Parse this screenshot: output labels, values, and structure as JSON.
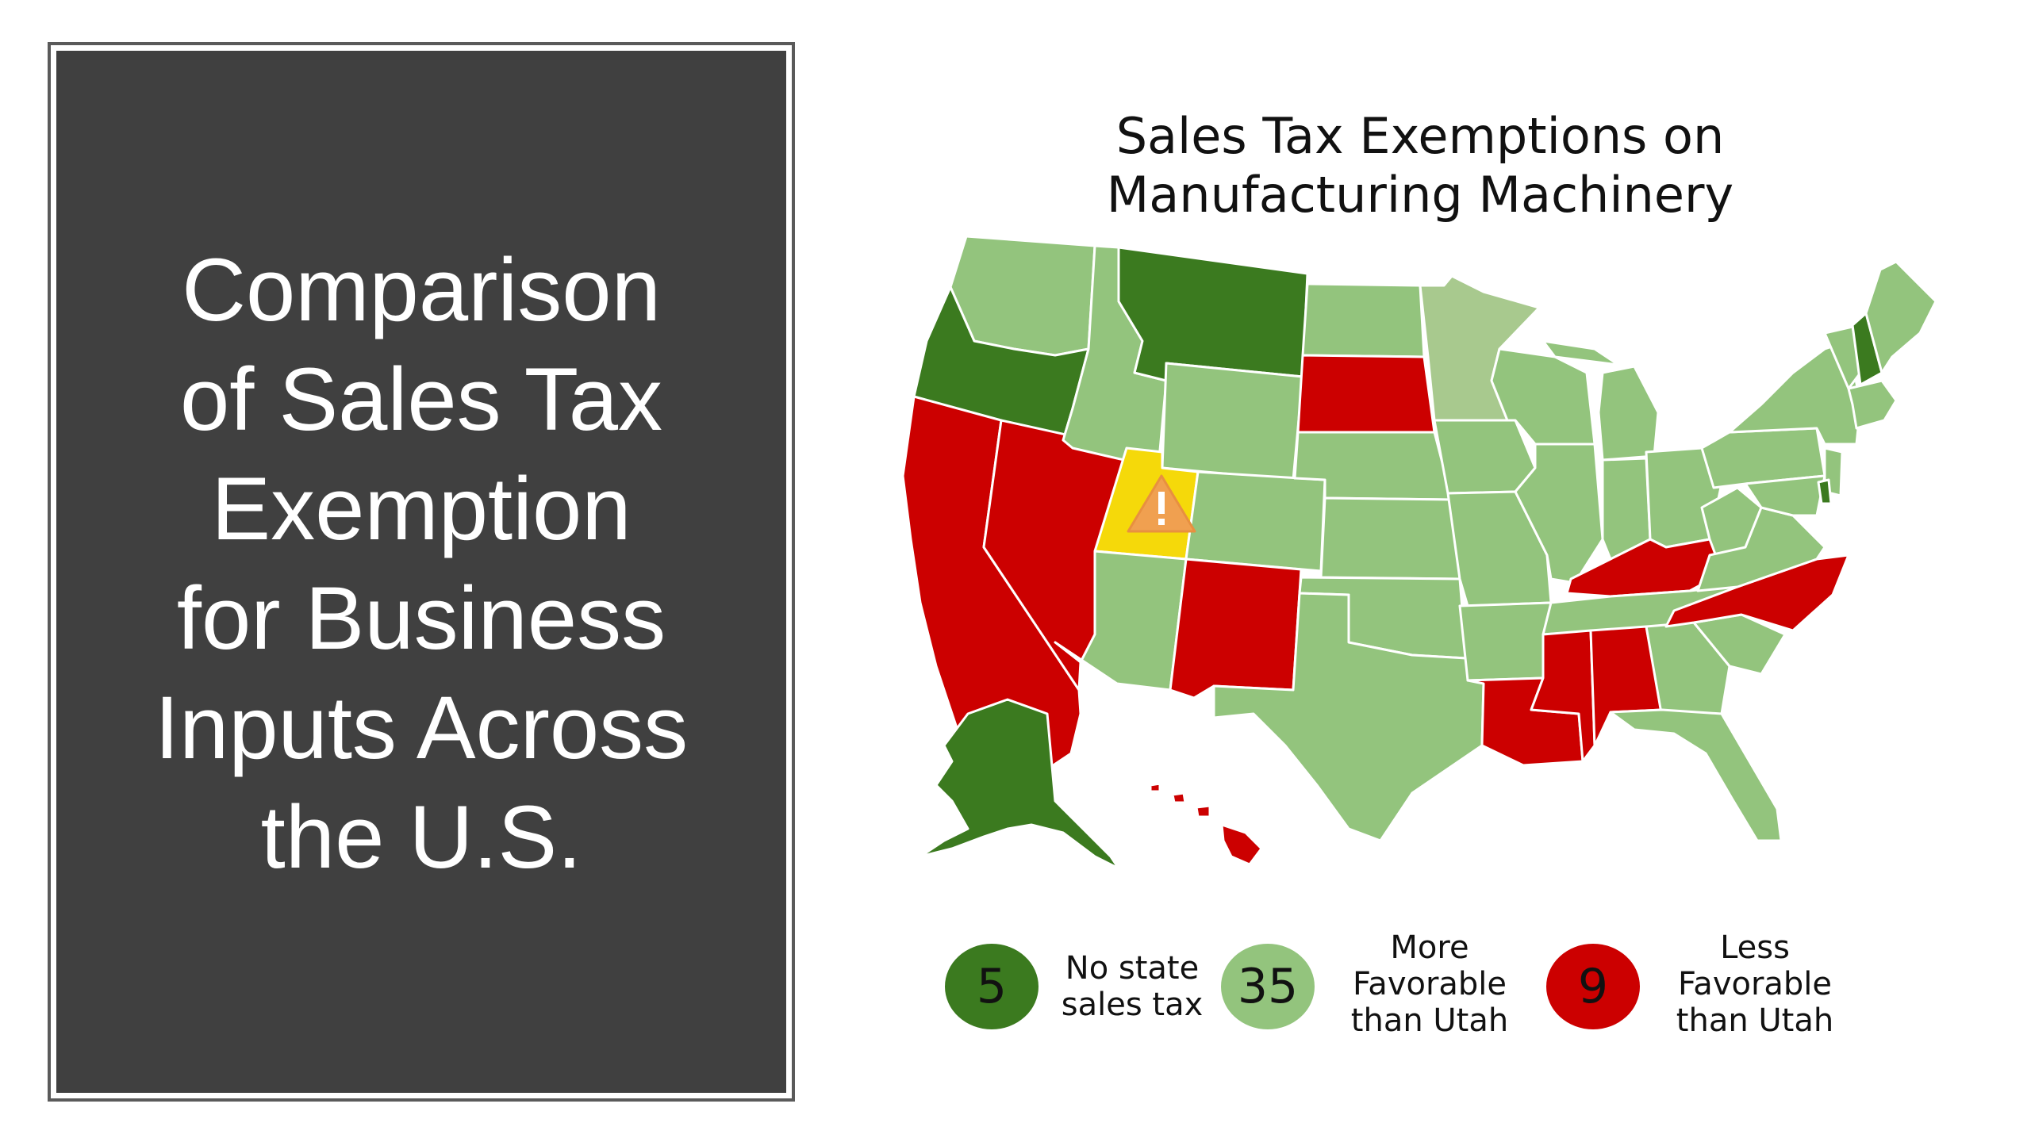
{
  "slide": {
    "title": "Comparison\nof Sales Tax\nExemption\nfor Business\nInputs Across\nthe U.S."
  },
  "map": {
    "title_line1": "Sales Tax Exemptions on",
    "title_line2": "Manufacturing Machinery",
    "colors": {
      "no_tax": "#3b7a1f",
      "more_favorable": "#93c47d",
      "less_favorable": "#cc0000",
      "utah": "#f5d90a",
      "minnesota": "#a8c98e",
      "border": "#ffffff"
    },
    "warning_icon": "warning-triangle-icon"
  },
  "legend": [
    {
      "count": "5",
      "label": "No state\nsales tax",
      "color": "#3b7a1f"
    },
    {
      "count": "35",
      "label": "More\nFavorable\nthan Utah",
      "color": "#93c47d"
    },
    {
      "count": "9",
      "label": "Less\nFavorable\nthan Utah",
      "color": "#cc0000"
    }
  ]
}
